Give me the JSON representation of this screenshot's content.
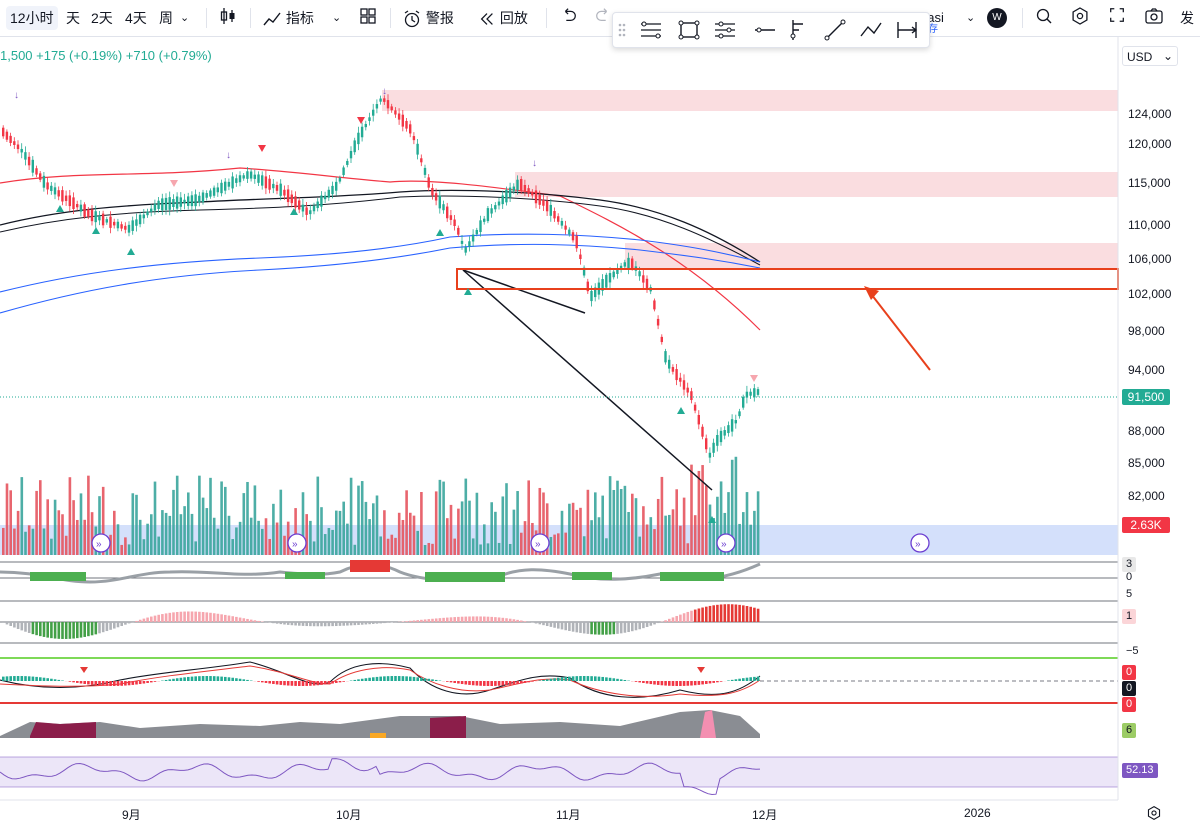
{
  "toolbar": {
    "timeframes": [
      "12小时",
      "天",
      "2天",
      "4天",
      "周"
    ],
    "indicators_label": "指标",
    "alert_label": "警报",
    "replay_label": "回放",
    "user_text": "gasi",
    "user_sub": "存",
    "avatar_letter": "W",
    "publish_label": "发"
  },
  "legend": {
    "text": "1,500  +175 (+0.19%)  +710 (+0.79%)"
  },
  "currency": "USD",
  "price_axis": {
    "labels": [
      "124,000",
      "120,000",
      "115,000",
      "110,000",
      "106,000",
      "102,000",
      "98,000",
      "94,000",
      "88,000",
      "85,000",
      "82,000"
    ],
    "current_price": "91,500",
    "volume_label": "2.63K"
  },
  "indicator_values": [
    "3",
    "0",
    "5",
    "1",
    "−5",
    "0",
    "0",
    "0",
    "6",
    "52.13"
  ],
  "date_axis": [
    "9月",
    "10月",
    "11月",
    "12月",
    "2026"
  ],
  "colors": {
    "up": "#22ab94",
    "down": "#f23645",
    "accent": "#2962ff",
    "highlight_box": "#e8401c",
    "rsi": "#7e57c2"
  }
}
